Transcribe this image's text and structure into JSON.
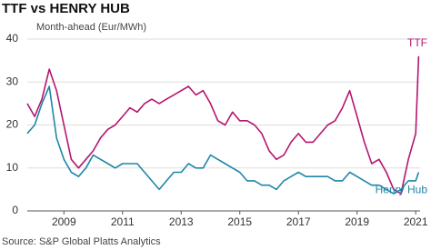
{
  "chart_data": {
    "type": "line",
    "title": "TTF vs HENRY HUB",
    "y_label": "Month-ahead (Eur/MWh)",
    "source": "Source: S&P Global Platts Analytics",
    "x": [
      2007.75,
      2008.0,
      2008.25,
      2008.5,
      2008.75,
      2009.0,
      2009.25,
      2009.5,
      2009.75,
      2010.0,
      2010.25,
      2010.5,
      2010.75,
      2011.0,
      2011.25,
      2011.5,
      2011.75,
      2012.0,
      2012.25,
      2012.5,
      2012.75,
      2013.0,
      2013.25,
      2013.5,
      2013.75,
      2014.0,
      2014.25,
      2014.5,
      2014.75,
      2015.0,
      2015.25,
      2015.5,
      2015.75,
      2016.0,
      2016.25,
      2016.5,
      2016.75,
      2017.0,
      2017.25,
      2017.5,
      2017.75,
      2018.0,
      2018.25,
      2018.5,
      2018.75,
      2019.0,
      2019.25,
      2019.5,
      2019.75,
      2020.0,
      2020.25,
      2020.5,
      2020.75,
      2021.0,
      2021.1
    ],
    "series": [
      {
        "name": "TTF",
        "color": "#b5166f",
        "values": [
          25,
          22,
          26,
          33,
          28,
          20,
          12,
          10,
          12,
          14,
          17,
          19,
          20,
          22,
          24,
          23,
          25,
          26,
          25,
          26,
          27,
          28,
          29,
          27,
          28,
          25,
          21,
          20,
          23,
          21,
          21,
          20,
          18,
          14,
          12,
          13,
          16,
          18,
          16,
          16,
          18,
          20,
          21,
          24,
          28,
          22,
          16,
          11,
          12,
          9,
          5,
          4,
          12,
          18,
          36
        ]
      },
      {
        "name": "Henry Hub",
        "color": "#1f86a8",
        "values": [
          18,
          20,
          25,
          29,
          17,
          12,
          9,
          8,
          10,
          13,
          12,
          11,
          10,
          11,
          11,
          11,
          9,
          7,
          5,
          7,
          9,
          9,
          11,
          10,
          10,
          13,
          12,
          11,
          10,
          9,
          7,
          7,
          6,
          6,
          5,
          7,
          8,
          9,
          8,
          8,
          8,
          8,
          7,
          7,
          9,
          8,
          7,
          6,
          6,
          5,
          4,
          5,
          7,
          7,
          9
        ]
      }
    ],
    "xlim": [
      2007.75,
      2021.15
    ],
    "xticks": [
      2009,
      2011,
      2013,
      2015,
      2017,
      2019,
      2021
    ],
    "ylim": [
      0,
      40
    ],
    "yticks": [
      0,
      10,
      20,
      30,
      40
    ],
    "grid": true
  }
}
